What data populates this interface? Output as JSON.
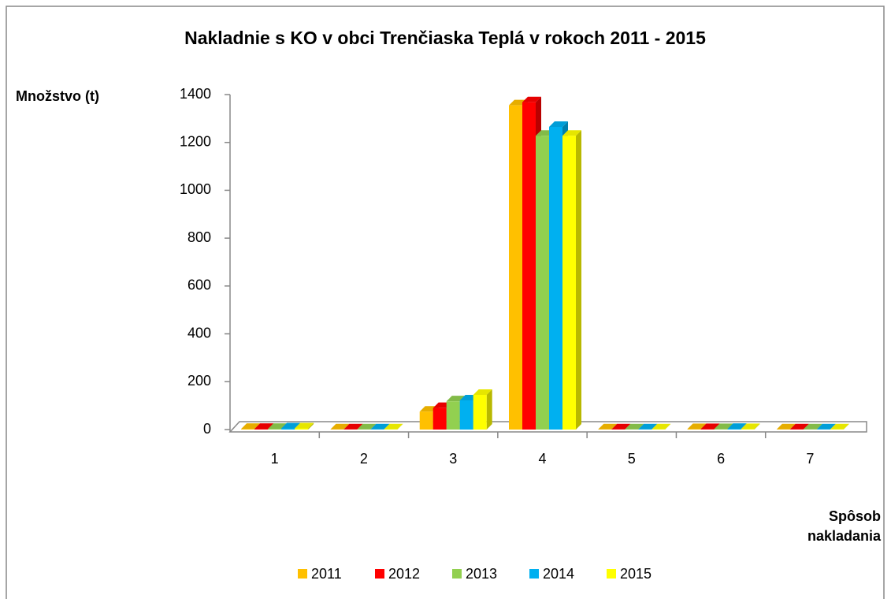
{
  "chart_data": {
    "type": "bar3d",
    "title": "Nakladnie s KO v obci Trenčiaska Teplá v rokoch 2011 - 2015",
    "y_label": "Množstvo (t)",
    "x_label": "Spôsob nakladania",
    "categories": [
      "1",
      "2",
      "3",
      "4",
      "5",
      "6",
      "7"
    ],
    "series": [
      {
        "name": "2011",
        "color": "#FFC000",
        "values": [
          3,
          1,
          75,
          1355,
          1,
          2,
          1
        ]
      },
      {
        "name": "2012",
        "color": "#FF0000",
        "values": [
          3,
          1,
          90,
          1368,
          1,
          2,
          1
        ]
      },
      {
        "name": "2013",
        "color": "#92D050",
        "values": [
          3,
          1,
          118,
          1228,
          1,
          2,
          1
        ]
      },
      {
        "name": "2014",
        "color": "#00B0F0",
        "values": [
          5,
          1,
          122,
          1265,
          1,
          3,
          1
        ]
      },
      {
        "name": "2015",
        "color": "#FFFF00",
        "values": [
          5,
          1,
          145,
          1228,
          1,
          2,
          1
        ]
      }
    ],
    "ylim": [
      0,
      1400
    ],
    "yticks": [
      0,
      200,
      400,
      600,
      800,
      1000,
      1200,
      1400
    ],
    "legend": "bottom"
  }
}
